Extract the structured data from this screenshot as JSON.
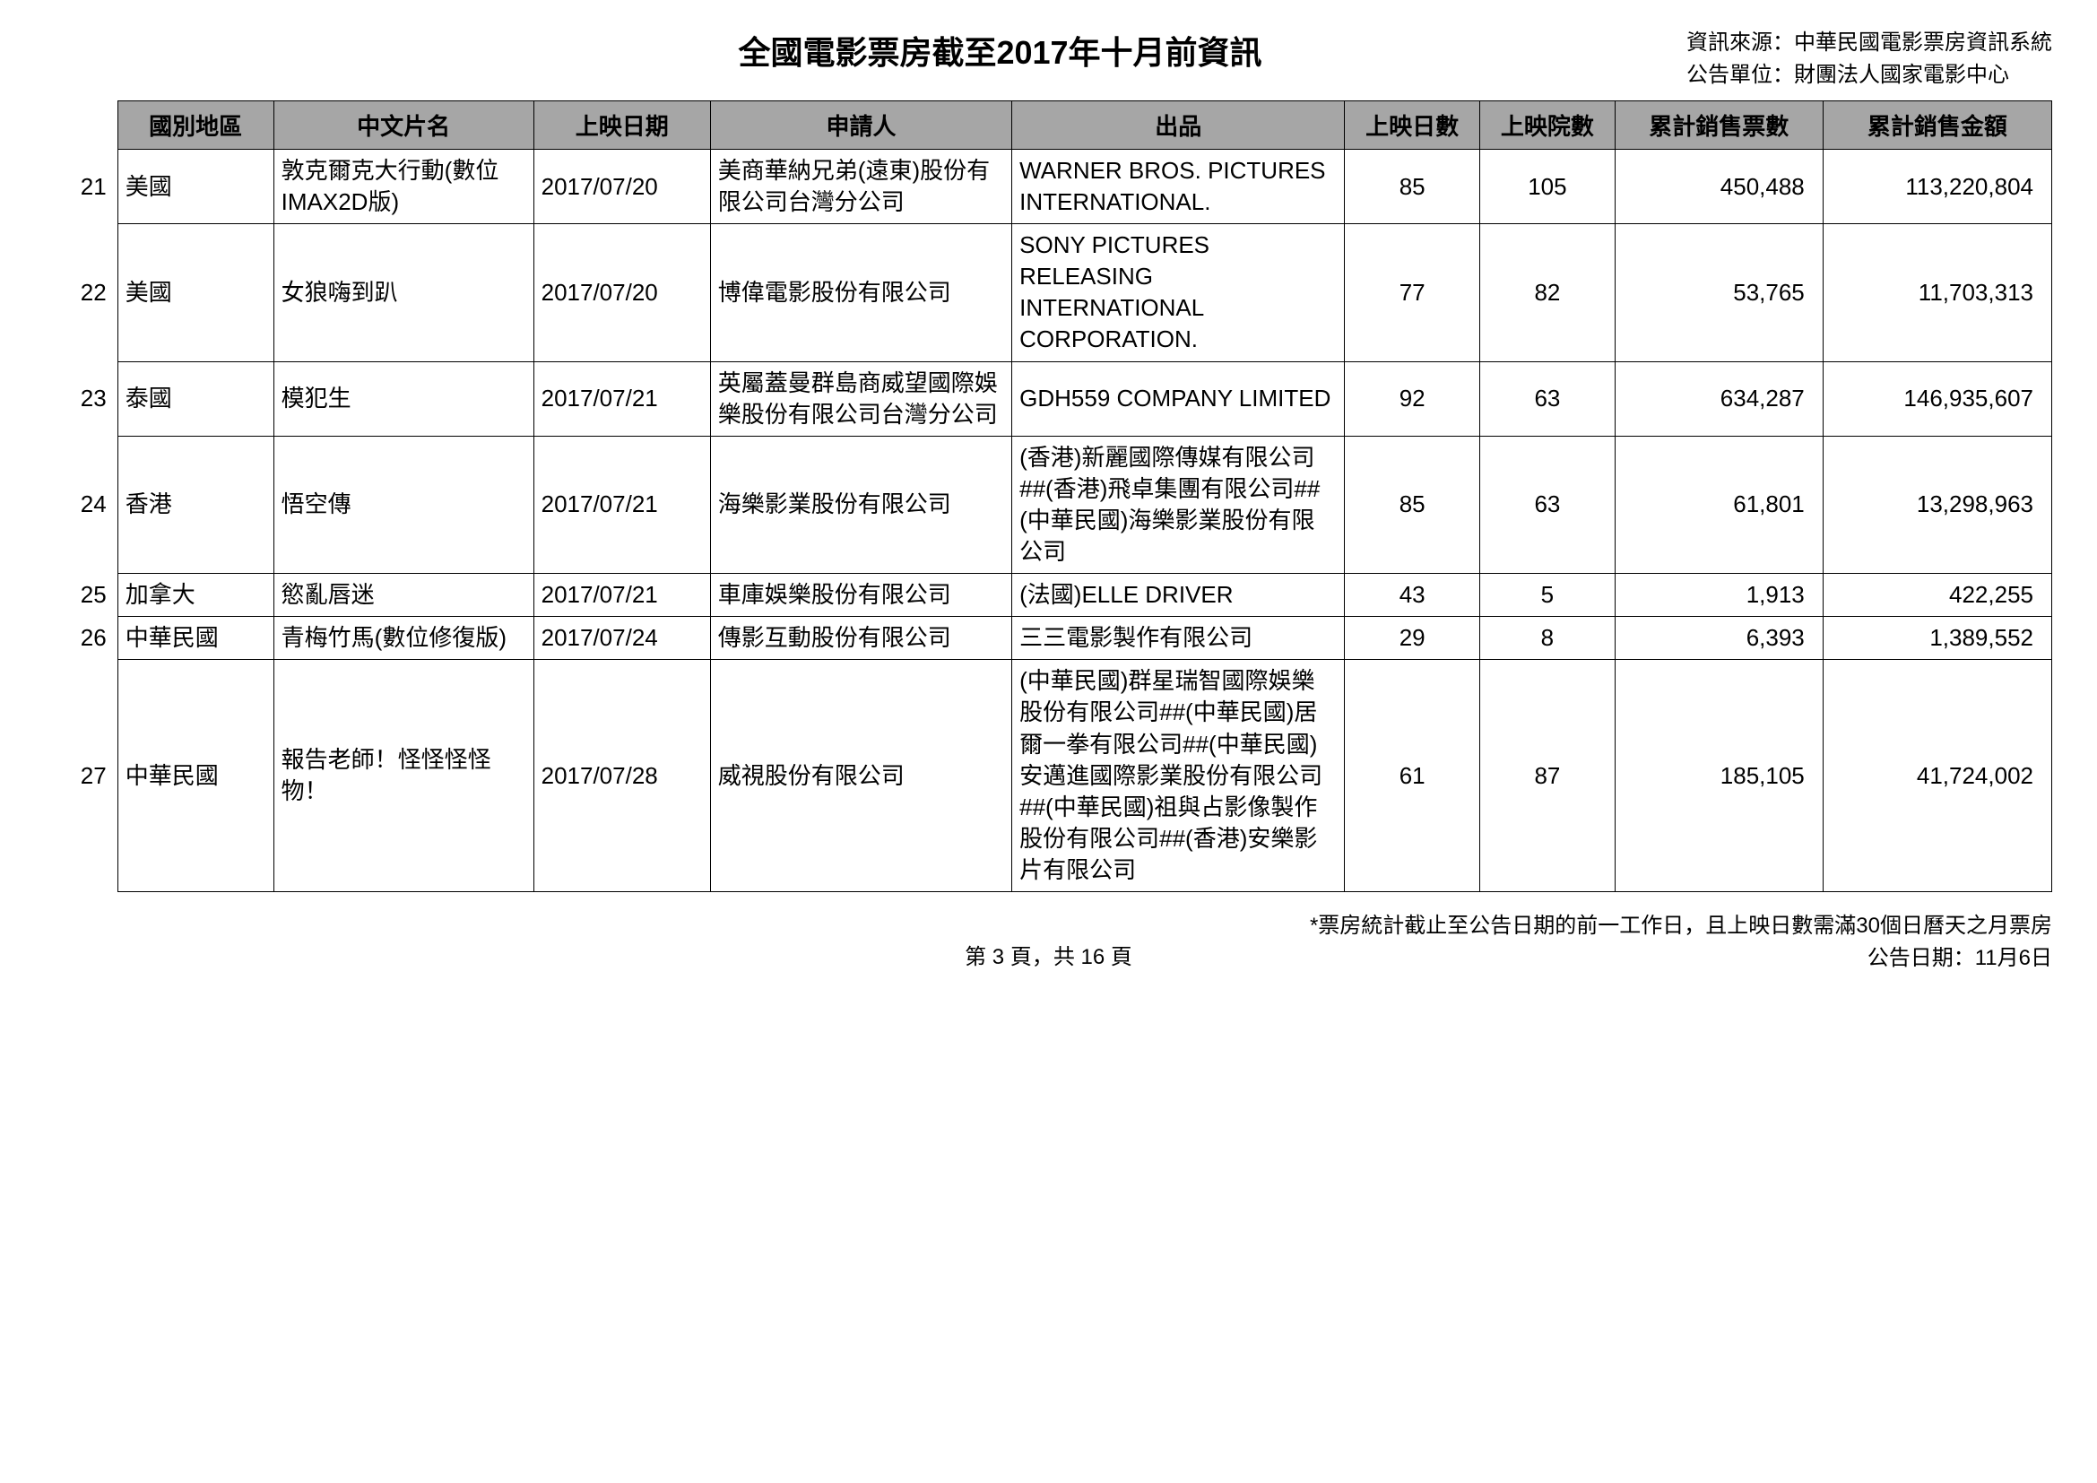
{
  "header": {
    "title": "全國電影票房截至2017年十月前資訊",
    "source_line1": "資訊來源：中華民國電影票房資訊系統",
    "source_line2": "公告單位：財團法人國家電影中心"
  },
  "table": {
    "columns": [
      "國別地區",
      "中文片名",
      "上映日期",
      "申請人",
      "出品",
      "上映日數",
      "上映院數",
      "累計銷售票數",
      "累計銷售金額"
    ],
    "col_align": [
      "left",
      "left",
      "left",
      "left",
      "left",
      "center",
      "center",
      "right",
      "right"
    ],
    "rows": [
      {
        "num": "21",
        "country": "美國",
        "title": "敦克爾克大行動(數位IMAX2D版)",
        "date": "2017/07/20",
        "applicant": "美商華納兄弟(遠東)股份有限公司台灣分公司",
        "producer": "WARNER BROS. PICTURES INTERNATIONAL.",
        "days": "85",
        "theaters": "105",
        "tickets": "450,488",
        "amount": "113,220,804"
      },
      {
        "num": "22",
        "country": "美國",
        "title": "女狼嗨到趴",
        "date": "2017/07/20",
        "applicant": "博偉電影股份有限公司",
        "producer": "SONY PICTURES RELEASING INTERNATIONAL CORPORATION.",
        "days": "77",
        "theaters": "82",
        "tickets": "53,765",
        "amount": "11,703,313"
      },
      {
        "num": "23",
        "country": "泰國",
        "title": "模犯生",
        "date": "2017/07/21",
        "applicant": "英屬蓋曼群島商威望國際娛樂股份有限公司台灣分公司",
        "producer": "GDH559 COMPANY LIMITED",
        "days": "92",
        "theaters": "63",
        "tickets": "634,287",
        "amount": "146,935,607"
      },
      {
        "num": "24",
        "country": "香港",
        "title": "悟空傳",
        "date": "2017/07/21",
        "applicant": "海樂影業股份有限公司",
        "producer": "(香港)新麗國際傳媒有限公司##(香港)飛卓集團有限公司##(中華民國)海樂影業股份有限公司",
        "days": "85",
        "theaters": "63",
        "tickets": "61,801",
        "amount": "13,298,963"
      },
      {
        "num": "25",
        "country": "加拿大",
        "title": "慾亂唇迷",
        "date": "2017/07/21",
        "applicant": "車庫娛樂股份有限公司",
        "producer": "(法國)ELLE DRIVER",
        "days": "43",
        "theaters": "5",
        "tickets": "1,913",
        "amount": "422,255"
      },
      {
        "num": "26",
        "country": "中華民國",
        "title": "青梅竹馬(數位修復版)",
        "date": "2017/07/24",
        "applicant": "傳影互動股份有限公司",
        "producer": "三三電影製作有限公司",
        "days": "29",
        "theaters": "8",
        "tickets": "6,393",
        "amount": "1,389,552"
      },
      {
        "num": "27",
        "country": "中華民國",
        "title": "報告老師！怪怪怪怪物！",
        "date": "2017/07/28",
        "applicant": "威視股份有限公司",
        "producer": "(中華民國)群星瑞智國際娛樂股份有限公司##(中華民國)居爾一拳有限公司##(中華民國)安邁進國際影業股份有限公司##(中華民國)祖與占影像製作股份有限公司##(香港)安樂影片有限公司",
        "days": "61",
        "theaters": "87",
        "tickets": "185,105",
        "amount": "41,724,002"
      }
    ]
  },
  "footer": {
    "note": "*票房統計截止至公告日期的前一工作日，且上映日數需滿30個日曆天之月票房",
    "pub_date": "公告日期：11月6日",
    "page": "第 3 頁，共 16 頁"
  }
}
